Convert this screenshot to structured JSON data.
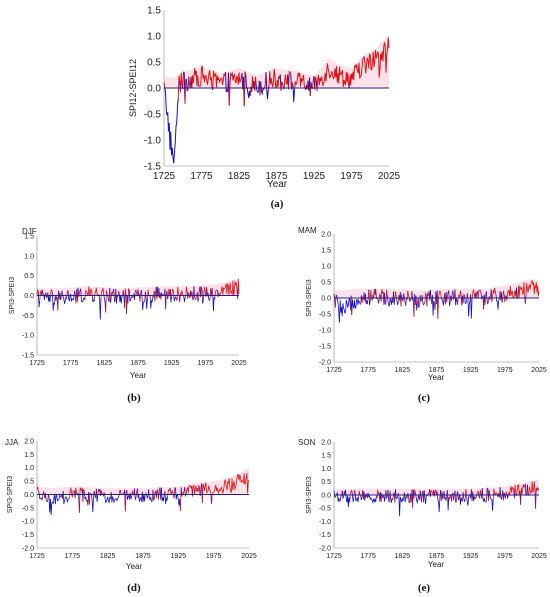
{
  "chart_data": [
    {
      "panel": "a",
      "type": "line",
      "caption": "(a)",
      "season": "",
      "ylabel": "SPI12-SPEI12",
      "xlabel": "Year",
      "xlim": [
        1725,
        2025
      ],
      "ylim": [
        -1.5,
        1.5
      ],
      "xticks": [
        "1725",
        "1775",
        "1825",
        "1875",
        "1925",
        "1975",
        "2025"
      ],
      "yticks": [
        "-1.5",
        "-1.0",
        "-0.5",
        "0.0",
        "0.5",
        "1.0",
        "1.5"
      ],
      "baseline": 0,
      "keyframes": [
        [
          1725,
          0.05
        ],
        [
          1738,
          -1.45
        ],
        [
          1745,
          0.1
        ],
        [
          1775,
          0.25
        ],
        [
          1800,
          0.1
        ],
        [
          1825,
          0.2
        ],
        [
          1850,
          0.05
        ],
        [
          1870,
          0.2
        ],
        [
          1900,
          0.15
        ],
        [
          1925,
          0.05
        ],
        [
          1945,
          0.4
        ],
        [
          1960,
          0.25
        ],
        [
          1975,
          0.2
        ],
        [
          1990,
          0.45
        ],
        [
          2005,
          0.55
        ],
        [
          2025,
          0.85
        ]
      ],
      "colors": {
        "positive": "#dd1111",
        "negative": "#1111cc",
        "baseline": "#222288",
        "band": "#f8c8d8"
      }
    },
    {
      "panel": "b",
      "type": "line",
      "caption": "(b)",
      "season": "DJF",
      "ylabel": "SPI3-SPEI3",
      "xlabel": "Year",
      "xlim": [
        1725,
        2025
      ],
      "ylim": [
        -1.5,
        1.5
      ],
      "xticks": [
        "1725",
        "1775",
        "1825",
        "1875",
        "1925",
        "1975",
        "2025"
      ],
      "yticks": [
        "-1.5",
        "-1.0",
        "-0.5",
        "0.0",
        "0.5",
        "1.0",
        "1.5"
      ],
      "baseline": 0,
      "keyframes": [
        [
          1725,
          0.0
        ],
        [
          1760,
          -0.05
        ],
        [
          1800,
          0.05
        ],
        [
          1850,
          0.0
        ],
        [
          1900,
          0.05
        ],
        [
          1950,
          0.05
        ],
        [
          1990,
          0.1
        ],
        [
          2025,
          0.25
        ]
      ],
      "colors": {
        "positive": "#dd1111",
        "negative": "#1111cc",
        "baseline": "#222288",
        "band": "#f8c8d8"
      }
    },
    {
      "panel": "c",
      "type": "line",
      "caption": "(c)",
      "season": "MAM",
      "ylabel": "SPI3-SPEI3",
      "xlabel": "Year",
      "xlim": [
        1725,
        2025
      ],
      "ylim": [
        -2.0,
        2.0
      ],
      "xticks": [
        "1725",
        "1775",
        "1825",
        "1875",
        "1925",
        "1975",
        "2025"
      ],
      "yticks": [
        "-2.0",
        "-1.5",
        "-1.0",
        "-0.5",
        "0.0",
        "0.5",
        "1.0",
        "1.5",
        "2.0"
      ],
      "baseline": 0,
      "keyframes": [
        [
          1725,
          0.0
        ],
        [
          1738,
          -0.4
        ],
        [
          1760,
          0.05
        ],
        [
          1800,
          0.05
        ],
        [
          1850,
          0.0
        ],
        [
          1900,
          0.05
        ],
        [
          1950,
          0.05
        ],
        [
          1990,
          0.2
        ],
        [
          2010,
          0.35
        ],
        [
          2025,
          0.3
        ]
      ],
      "colors": {
        "positive": "#dd1111",
        "negative": "#1111cc",
        "baseline": "#222288",
        "band": "#f8c8d8"
      }
    },
    {
      "panel": "d",
      "type": "line",
      "caption": "(d)",
      "season": "JJA",
      "ylabel": "SPI3-SPEI3",
      "xlabel": "Year",
      "xlim": [
        1725,
        2025
      ],
      "ylim": [
        -2.0,
        2.0
      ],
      "xticks": [
        "1725",
        "1775",
        "1825",
        "1875",
        "1925",
        "1975",
        "2025"
      ],
      "yticks": [
        "-2.0",
        "-1.5",
        "-1.0",
        "-0.5",
        "0.0",
        "0.5",
        "1.0",
        "1.5",
        "2.0"
      ],
      "baseline": 0,
      "keyframes": [
        [
          1725,
          0.05
        ],
        [
          1745,
          -0.3
        ],
        [
          1775,
          0.05
        ],
        [
          1825,
          -0.05
        ],
        [
          1875,
          0.0
        ],
        [
          1925,
          0.05
        ],
        [
          1950,
          0.2
        ],
        [
          1975,
          0.25
        ],
        [
          2000,
          0.4
        ],
        [
          2025,
          0.75
        ]
      ],
      "colors": {
        "positive": "#dd1111",
        "negative": "#1111cc",
        "baseline": "#222288",
        "band": "#f8c8d8"
      }
    },
    {
      "panel": "e",
      "type": "line",
      "caption": "(e)",
      "season": "SON",
      "ylabel": "SPI3-SPEI3",
      "xlabel": "Year",
      "xlim": [
        1725,
        2025
      ],
      "ylim": [
        -2.0,
        2.0
      ],
      "xticks": [
        "1725",
        "1775",
        "1825",
        "1875",
        "1925",
        "1975",
        "2025"
      ],
      "yticks": [
        "-2.0",
        "-1.5",
        "-1.0",
        "-0.5",
        "0.0",
        "0.5",
        "1.0",
        "1.5",
        "2.0"
      ],
      "baseline": 0,
      "keyframes": [
        [
          1725,
          0.0
        ],
        [
          1775,
          -0.05
        ],
        [
          1825,
          0.0
        ],
        [
          1875,
          0.0
        ],
        [
          1925,
          0.0
        ],
        [
          1960,
          0.05
        ],
        [
          1990,
          0.15
        ],
        [
          2025,
          0.35
        ]
      ],
      "colors": {
        "positive": "#dd1111",
        "negative": "#1111cc",
        "baseline": "#222288",
        "band": "#f8c8d8"
      }
    }
  ]
}
